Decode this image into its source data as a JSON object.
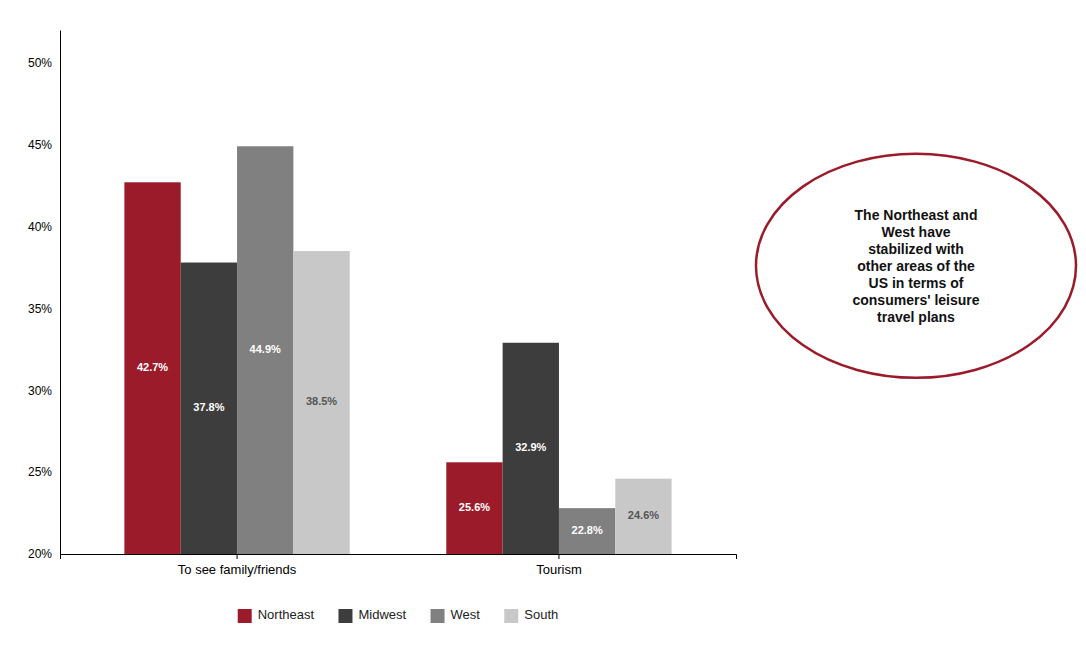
{
  "chart_data": {
    "type": "bar",
    "categories": [
      "To see family/friends",
      "Tourism"
    ],
    "series": [
      {
        "name": "Northeast",
        "color": "#9B1B2A",
        "values": [
          42.7,
          25.6
        ],
        "value_labels": [
          "42.7%",
          "25.6%"
        ]
      },
      {
        "name": "Midwest",
        "color": "#3D3D3D",
        "values": [
          37.8,
          32.9
        ],
        "value_labels": [
          "37.8%",
          "32.9%"
        ]
      },
      {
        "name": "West",
        "color": "#808080",
        "values": [
          44.9,
          22.8
        ],
        "value_labels": [
          "44.9%",
          "22.8%"
        ]
      },
      {
        "name": "South",
        "color": "#C8C8C8",
        "values": [
          38.5,
          24.6
        ],
        "value_labels": [
          "38.5%",
          "24.6%"
        ]
      }
    ],
    "ylim": [
      20,
      52
    ],
    "yticks": [
      {
        "value": 20,
        "label": "20%"
      },
      {
        "value": 25,
        "label": "25%"
      },
      {
        "value": 30,
        "label": "30%"
      },
      {
        "value": 35,
        "label": "35%"
      },
      {
        "value": 40,
        "label": "40%"
      },
      {
        "value": 45,
        "label": "45%"
      },
      {
        "value": 50,
        "label": "50%"
      }
    ],
    "data_labels": true,
    "grid": false,
    "legend": "bottom",
    "annotation": {
      "text": "The Northeast and\nWest have\nstabilized with\nother areas of the\nUS in terms of\nconsumers' leisure\ntravel plans",
      "color": "#9B1B2A"
    }
  }
}
